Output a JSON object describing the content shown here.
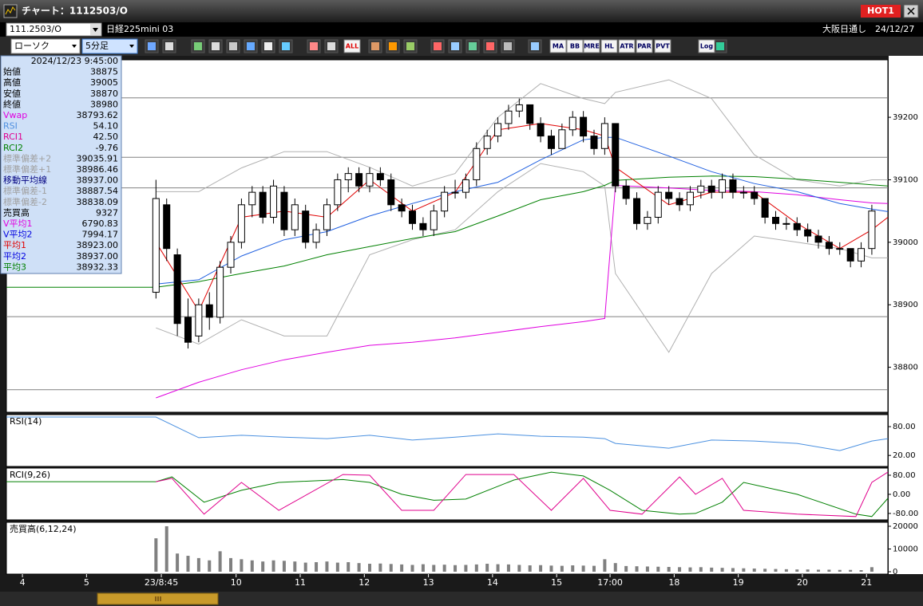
{
  "window": {
    "title": "チャート：1112503/O",
    "badge": "HOT1",
    "symbol": "111.2503/O",
    "instrument": "日経225mini 03",
    "session": "大阪日通し",
    "date": "24/12/27"
  },
  "toolbar": {
    "chart_style": "ローソク",
    "interval": "5分足",
    "buttons": [
      "ALL",
      "MA",
      "BB",
      "MRE",
      "HL",
      "ATR",
      "PAR",
      "PVT",
      "Log"
    ]
  },
  "info_panel": {
    "datetime": "2024/12/23 9:45:00",
    "rows": [
      {
        "label": "始値",
        "value": "38875",
        "color": "#000000"
      },
      {
        "label": "高値",
        "value": "39005",
        "color": "#000000"
      },
      {
        "label": "安値",
        "value": "38870",
        "color": "#000000"
      },
      {
        "label": "終値",
        "value": "38980",
        "color": "#000000"
      },
      {
        "label": "Vwap",
        "value": "38793.62",
        "color": "#e000e0"
      },
      {
        "label": "RSI",
        "value": "54.10",
        "color": "#5090e0"
      },
      {
        "label": "RCI1",
        "value": "42.50",
        "color": "#e00090"
      },
      {
        "label": "RCI2",
        "value": "-9.76",
        "color": "#008000"
      },
      {
        "label": "標準偏差+2",
        "value": "39035.91",
        "color": "#a0a0a0"
      },
      {
        "label": "標準偏差+1",
        "value": "38986.46",
        "color": "#a0a0a0"
      },
      {
        "label": "移動平均線",
        "value": "38937.00",
        "color": "#000080"
      },
      {
        "label": "標準偏差-1",
        "value": "38887.54",
        "color": "#a0a0a0"
      },
      {
        "label": "標準偏差-2",
        "value": "38838.09",
        "color": "#a0a0a0"
      },
      {
        "label": "売買高",
        "value": "9327",
        "color": "#000000"
      },
      {
        "label": "V平均1",
        "value": "6790.83",
        "color": "#e000e0"
      },
      {
        "label": "V平均2",
        "value": "7994.17",
        "color": "#0000e0"
      },
      {
        "label": "平均1",
        "value": "38923.00",
        "color": "#e00000"
      },
      {
        "label": "平均2",
        "value": "38937.00",
        "color": "#0000e0"
      },
      {
        "label": "平均3",
        "value": "38932.33",
        "color": "#008000"
      }
    ]
  },
  "chart_data": [
    {
      "type": "candlestick",
      "up_color": "#ffffff",
      "down_color": "#000000",
      "x": [
        0,
        2,
        4,
        6,
        8,
        10,
        12,
        14,
        16,
        18,
        20,
        22,
        24,
        26,
        28,
        30,
        32,
        34,
        36,
        38,
        40,
        42,
        44,
        46,
        48,
        50,
        52,
        54,
        56,
        58,
        60,
        62,
        64,
        66,
        68,
        70,
        72,
        74,
        76,
        78,
        80,
        82,
        84,
        86,
        88,
        90,
        92,
        94,
        96,
        98,
        100,
        102,
        104,
        106,
        108,
        110,
        112,
        114,
        116,
        118,
        120,
        122,
        124,
        126,
        128,
        130,
        132,
        134
      ],
      "open": [
        38920,
        39060,
        38980,
        38880,
        38850,
        38900,
        38880,
        38960,
        39000,
        39060,
        39080,
        39040,
        39080,
        39020,
        39050,
        39000,
        39020,
        39060,
        39100,
        39110,
        39090,
        39110,
        39100,
        39060,
        39050,
        39030,
        39020,
        39050,
        39080,
        39080,
        39100,
        39150,
        39170,
        39190,
        39210,
        39220,
        39190,
        39170,
        39150,
        39180,
        39200,
        39170,
        39150,
        39190,
        39090,
        39070,
        39030,
        39040,
        39080,
        39070,
        39060,
        39080,
        39090,
        39080,
        39100,
        39080,
        39080,
        39070,
        39040,
        39030,
        39030,
        39020,
        39010,
        39000,
        38990,
        38990,
        38970,
        38990
      ],
      "high": [
        39100,
        39070,
        38990,
        38910,
        38910,
        38920,
        38970,
        39010,
        39070,
        39090,
        39090,
        39100,
        39090,
        39070,
        39060,
        39030,
        39070,
        39110,
        39120,
        39120,
        39120,
        39120,
        39110,
        39070,
        39060,
        39040,
        39060,
        39090,
        39100,
        39110,
        39160,
        39180,
        39200,
        39220,
        39230,
        39220,
        39200,
        39180,
        39190,
        39210,
        39210,
        39180,
        39200,
        39190,
        39100,
        39080,
        39050,
        39090,
        39090,
        39080,
        39090,
        39100,
        39100,
        39110,
        39110,
        39090,
        39090,
        39070,
        39050,
        39040,
        39040,
        39030,
        39020,
        39010,
        39000,
        38990,
        39000,
        39060
      ],
      "low": [
        38910,
        38970,
        38850,
        38830,
        38840,
        38860,
        38870,
        38950,
        38990,
        39040,
        39030,
        39030,
        39010,
        39010,
        38990,
        38990,
        39010,
        39050,
        39080,
        39080,
        39080,
        39090,
        39050,
        39040,
        39020,
        39010,
        39010,
        39040,
        39070,
        39070,
        39090,
        39140,
        39160,
        39180,
        39200,
        39180,
        39160,
        39140,
        39150,
        39170,
        39160,
        39140,
        39140,
        39080,
        39060,
        39020,
        39020,
        39030,
        39060,
        39050,
        39050,
        39070,
        39070,
        39070,
        39070,
        39070,
        39060,
        39030,
        39020,
        39020,
        39010,
        39000,
        38990,
        38980,
        38980,
        38960,
        38960,
        38980
      ],
      "close": [
        39070,
        38990,
        38870,
        38840,
        38900,
        38880,
        38960,
        39000,
        39060,
        39080,
        39040,
        39090,
        39020,
        39060,
        39000,
        39020,
        39060,
        39100,
        39110,
        39090,
        39110,
        39100,
        39060,
        39050,
        39030,
        39020,
        39050,
        39080,
        39080,
        39100,
        39150,
        39170,
        39190,
        39210,
        39220,
        39190,
        39170,
        39150,
        39180,
        39200,
        39170,
        39150,
        39190,
        39090,
        39070,
        39030,
        39040,
        39080,
        39070,
        39060,
        39080,
        39090,
        39080,
        39100,
        39080,
        39080,
        39070,
        39040,
        39030,
        39030,
        39020,
        39010,
        39000,
        38990,
        38990,
        38970,
        38990,
        39050
      ],
      "line_x": [
        -28,
        0,
        8,
        16,
        24,
        32,
        40,
        48,
        56,
        64,
        72,
        80,
        84,
        86,
        96,
        104,
        112,
        120,
        128,
        134,
        137
      ],
      "lines": [
        {
          "color": "#b0b0b0",
          "values": [
            null,
            39081,
            39081,
            39119,
            39145,
            39145,
            39120,
            39090,
            39110,
            39200,
            39254,
            39230,
            39222,
            39240,
            39260,
            39230,
            39140,
            39100,
            39090,
            39100,
            39100
          ]
        },
        {
          "color": "#b0b0b0",
          "values": [
            null,
            38863,
            38837,
            38876,
            38850,
            38850,
            38980,
            39004,
            39020,
            39081,
            39126,
            39113,
            39090,
            38950,
            38824,
            38950,
            39010,
            39000,
            38990,
            38975,
            38975
          ]
        },
        {
          "color": "#e000e0",
          "values": [
            null,
            38751,
            38776,
            38796,
            38812,
            38824,
            38835,
            38840,
            38847,
            38856,
            38865,
            38873,
            38878,
            39091,
            39087,
            39083,
            39081,
            39076,
            39068,
            39063,
            39062
          ]
        },
        {
          "color": "#008000",
          "values": [
            38928,
            38928,
            38937,
            38950,
            38962,
            38980,
            38993,
            39006,
            39017,
            39042,
            39068,
            39081,
            39091,
            39099,
            39104,
            39106,
            39105,
            39101,
            39096,
            39092,
            39090
          ]
        },
        {
          "color": "#2060e0",
          "values": [
            null,
            38933,
            38940,
            38978,
            39004,
            39017,
            39042,
            39062,
            39081,
            39096,
            39132,
            39164,
            39168,
            39168,
            39138,
            39113,
            39094,
            39081,
            39062,
            39053,
            39049
          ]
        },
        {
          "color": "#e00000",
          "values": [
            null,
            39000,
            38890,
            39040,
            39050,
            39040,
            39100,
            39050,
            39080,
            39180,
            39190,
            39180,
            39170,
            39120,
            39060,
            39080,
            39080,
            39030,
            38990,
            39020,
            39040
          ]
        }
      ],
      "levels": [
        39231,
        39136,
        39087,
        38881,
        38764
      ],
      "ylim": [
        38728,
        39292
      ],
      "yticks": [
        39200,
        39100,
        39000,
        38900,
        38800
      ]
    },
    {
      "type": "line",
      "title": "RSI(14)",
      "series": [
        {
          "color": "#4a90e0",
          "values": [
            100,
            100,
            57,
            62,
            58,
            55,
            62,
            52,
            58,
            65,
            60,
            58,
            55,
            45,
            35,
            52,
            50,
            45,
            30,
            50,
            55
          ]
        }
      ],
      "ylim": [
        -3,
        105
      ],
      "yticks": [
        {
          "value": 80,
          "label": "80.00"
        },
        {
          "value": 20,
          "label": "20.00"
        }
      ]
    },
    {
      "type": "line",
      "title": "RCI(9,26)",
      "x": [
        -28,
        0,
        3,
        9,
        16,
        23,
        35,
        40,
        46,
        52,
        58,
        67,
        74,
        80,
        85,
        91,
        98,
        101,
        106,
        110,
        120,
        131,
        134,
        137
      ],
      "series": [
        {
          "color": "#008000",
          "values": [
            53,
            53,
            73,
            -33,
            17,
            50,
            62,
            50,
            0,
            -25,
            -20,
            60,
            93,
            77,
            17,
            -67,
            -83,
            -80,
            -33,
            50,
            0,
            -83,
            -93,
            -17
          ]
        },
        {
          "color": "#e0008c",
          "values": [
            null,
            53,
            67,
            -83,
            50,
            -67,
            83,
            80,
            -67,
            -67,
            83,
            83,
            -67,
            67,
            -67,
            -83,
            73,
            0,
            67,
            -67,
            -83,
            -93,
            50,
            93
          ]
        }
      ],
      "ylim": [
        -107,
        110
      ],
      "yticks": [
        {
          "value": 80,
          "label": "80.00"
        },
        {
          "value": 0,
          "label": "0.00"
        },
        {
          "value": -80,
          "label": "-80.00"
        }
      ]
    },
    {
      "type": "bar",
      "title": "売買高(6,12,24)",
      "color": "#808080",
      "values": [
        14700,
        20000,
        8000,
        7000,
        6000,
        5000,
        9000,
        6000,
        5500,
        5000,
        4500,
        5000,
        4800,
        4500,
        4000,
        4200,
        4500,
        4000,
        4200,
        3800,
        3500,
        3600,
        3400,
        3200,
        3000,
        3300,
        3000,
        3100,
        2900,
        3000,
        3200,
        3500,
        3300,
        3200,
        3000,
        2800,
        2900,
        2700,
        2600,
        2800,
        2700,
        2600,
        5500,
        3800,
        2500,
        2400,
        2300,
        2200,
        2100,
        2000,
        1900,
        2000,
        1800,
        1700,
        1600,
        1500,
        1400,
        1300,
        1200,
        1100,
        1000,
        1000,
        900,
        900,
        800,
        800,
        700,
        2000
      ],
      "ylim": [
        -1050,
        21750
      ],
      "yticks": [
        20000,
        10000,
        0
      ],
      "xlim": [
        -28,
        137
      ],
      "xticks": [
        {
          "value": -25,
          "label": "4"
        },
        {
          "value": -13,
          "label": "5"
        },
        {
          "value": 1,
          "label": "23/8:45"
        },
        {
          "value": 15,
          "label": "10"
        },
        {
          "value": 27,
          "label": "11"
        },
        {
          "value": 39,
          "label": "12"
        },
        {
          "value": 51,
          "label": "13"
        },
        {
          "value": 63,
          "label": "14"
        },
        {
          "value": 75,
          "label": "15"
        },
        {
          "value": 85,
          "label": "17:00"
        },
        {
          "value": 97,
          "label": "18"
        },
        {
          "value": 109,
          "label": "19"
        },
        {
          "value": 121,
          "label": "20"
        },
        {
          "value": 133,
          "label": "21"
        }
      ]
    }
  ]
}
